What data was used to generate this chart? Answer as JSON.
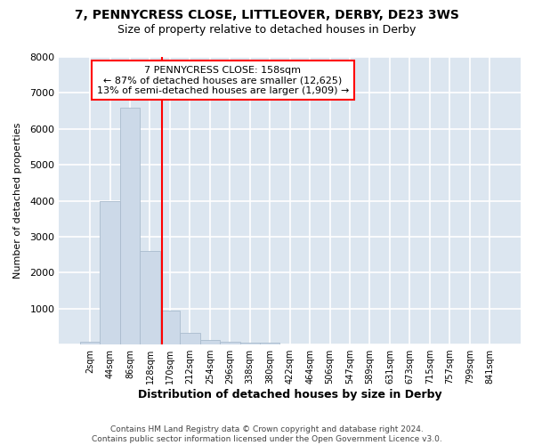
{
  "title_line1": "7, PENNYCRESS CLOSE, LITTLEOVER, DERBY, DE23 3WS",
  "title_line2": "Size of property relative to detached houses in Derby",
  "xlabel": "Distribution of detached houses by size in Derby",
  "ylabel": "Number of detached properties",
  "footnote1": "Contains HM Land Registry data © Crown copyright and database right 2024.",
  "footnote2": "Contains public sector information licensed under the Open Government Licence v3.0.",
  "bin_labels": [
    "2sqm",
    "44sqm",
    "86sqm",
    "128sqm",
    "170sqm",
    "212sqm",
    "254sqm",
    "296sqm",
    "338sqm",
    "380sqm",
    "422sqm",
    "464sqm",
    "506sqm",
    "547sqm",
    "589sqm",
    "631sqm",
    "673sqm",
    "715sqm",
    "757sqm",
    "799sqm",
    "841sqm"
  ],
  "bar_values": [
    80,
    4000,
    6600,
    2600,
    950,
    320,
    130,
    80,
    60,
    60,
    0,
    0,
    0,
    0,
    0,
    0,
    0,
    0,
    0,
    0,
    0
  ],
  "bar_color": "#ccd9e8",
  "bar_edgecolor": "#aabcce",
  "vline_x": 3.58,
  "vline_color": "red",
  "annotation_line1": "7 PENNYCRESS CLOSE: 158sqm",
  "annotation_line2": "← 87% of detached houses are smaller (12,625)",
  "annotation_line3": "13% of semi-detached houses are larger (1,909) →",
  "annotation_box_color": "red",
  "annotation_box_facecolor": "white",
  "ylim": [
    0,
    8000
  ],
  "yticks": [
    0,
    1000,
    2000,
    3000,
    4000,
    5000,
    6000,
    7000,
    8000
  ],
  "fig_background": "#ffffff",
  "plot_background": "#dce6f0",
  "grid_color": "#ffffff"
}
